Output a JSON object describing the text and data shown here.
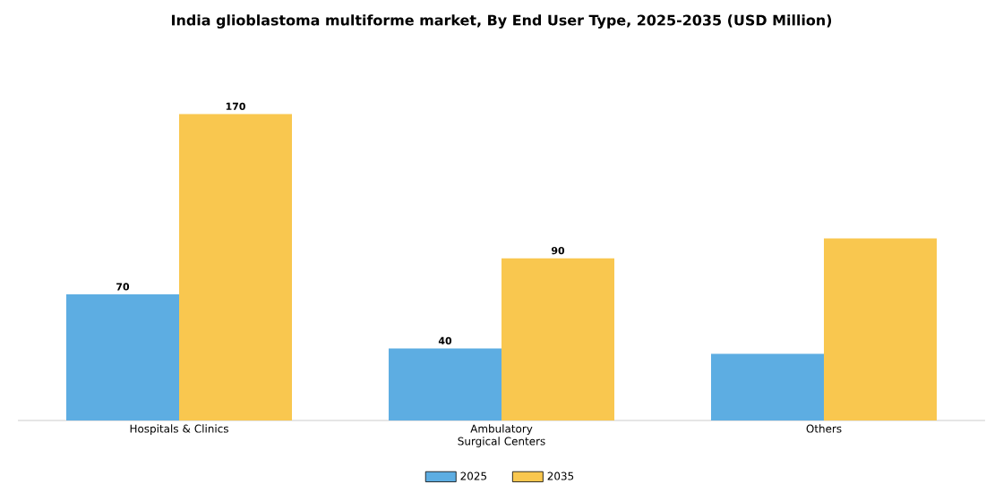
{
  "chart_data": {
    "type": "bar",
    "title": "India glioblastoma multiforme market, By End User Type, 2025-2035 (USD Million)",
    "categories": [
      "Hospitals & Clinics",
      "Ambulatory Surgical Centers",
      "Others"
    ],
    "legend": "bottom",
    "series": [
      {
        "name": "2025",
        "color": "#5dade2",
        "values": [
          70,
          40,
          37
        ],
        "value_labels": [
          "70",
          "40",
          null
        ]
      },
      {
        "name": "2035",
        "color": "#f9c74f",
        "values": [
          170,
          90,
          101
        ],
        "value_labels": [
          "170",
          "90",
          null
        ]
      }
    ]
  }
}
